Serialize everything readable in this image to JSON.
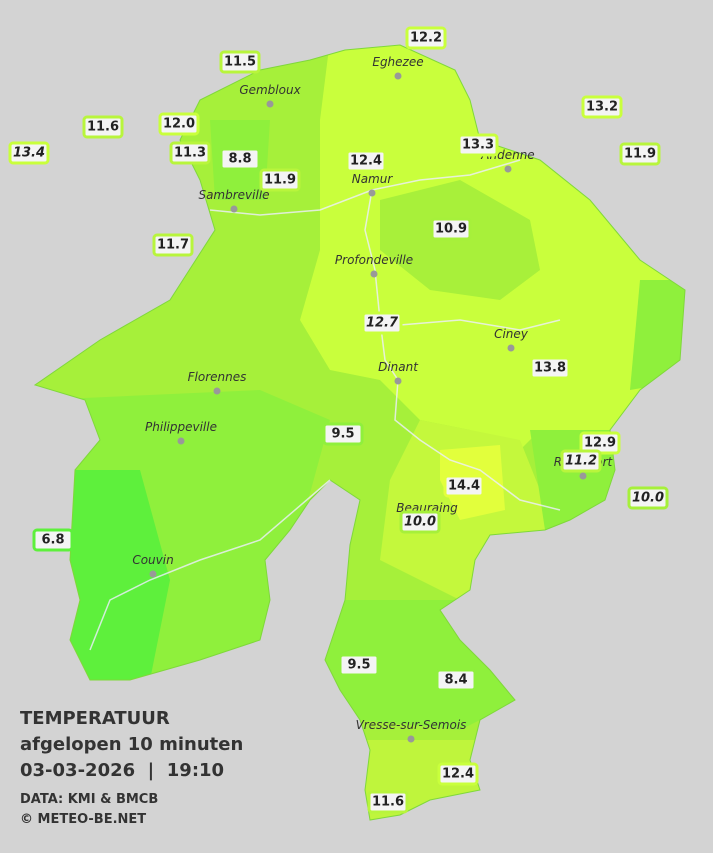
{
  "map": {
    "cities": [
      "Eghezee",
      "Gembloux",
      "Andenne",
      "Namur",
      "Sambreville",
      "Profondeville",
      "Ciney",
      "Dinant",
      "Florennes",
      "Philippeville",
      "Beauraing",
      "Rochefort",
      "Couvin",
      "Vresse-sur-Semois"
    ],
    "stations": [
      "12.2",
      "11.5",
      "13.2",
      "11.6",
      "12.0",
      "13.4",
      "11.3",
      "8.8",
      "12.4",
      "13.3",
      "11.9",
      "11.9",
      "11.7",
      "10.9",
      "12.7",
      "13.8",
      "9.5",
      "12.9",
      "11.2",
      "14.4",
      "10.0",
      "10.0",
      "6.8",
      "9.5",
      "8.4",
      "12.4",
      "11.6"
    ]
  },
  "legend": {
    "title": "TEMPERATUUR",
    "subtitle": "afgelopen 10 minuten",
    "datetime": "03-03-2026  |  19:10",
    "source": "DATA: KMI & BMCB",
    "credit": "© METEO-BE.NET"
  }
}
